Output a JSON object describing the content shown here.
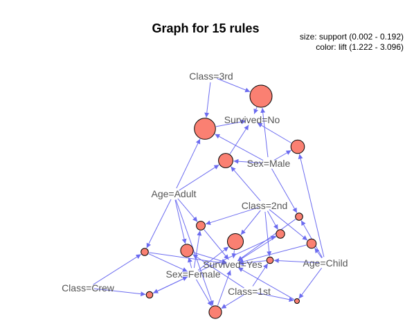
{
  "title": "Graph for 15 rules",
  "legend": {
    "size_line": "size: support (0.002 - 0.192)",
    "color_line": "color: lift (1.222 - 3.096)"
  },
  "colors": {
    "node_fill": "#fa8072",
    "edge": "#6b6bf0",
    "label": "#555555"
  },
  "items": [
    {
      "id": "class3",
      "label": "Class=3rd"
    },
    {
      "id": "survno",
      "label": "Survived=No"
    },
    {
      "id": "male",
      "label": "Sex=Male"
    },
    {
      "id": "adult",
      "label": "Age=Adult"
    },
    {
      "id": "class2",
      "label": "Class=2nd"
    },
    {
      "id": "survyes",
      "label": "Survived=Yes"
    },
    {
      "id": "child",
      "label": "Age=Child"
    },
    {
      "id": "female",
      "label": "Sex=Female"
    },
    {
      "id": "crew",
      "label": "Class=Crew"
    },
    {
      "id": "class1",
      "label": "Class=1st"
    }
  ],
  "rules": [
    {
      "id": "r1",
      "support": 0.192
    },
    {
      "id": "r2",
      "support": 0.17
    },
    {
      "id": "r3",
      "support": 0.06
    },
    {
      "id": "r4",
      "support": 0.05
    },
    {
      "id": "r5",
      "support": 0.04
    },
    {
      "id": "r6",
      "support": 0.04
    },
    {
      "id": "r7",
      "support": 0.08
    },
    {
      "id": "r8",
      "support": 0.012
    },
    {
      "id": "r9",
      "support": 0.011
    },
    {
      "id": "r10",
      "support": 0.015
    },
    {
      "id": "r11",
      "support": 0.006
    },
    {
      "id": "r12",
      "support": 0.006
    },
    {
      "id": "r13",
      "support": 0.004
    },
    {
      "id": "r14",
      "support": 0.004
    },
    {
      "id": "r15",
      "support": 0.002
    }
  ]
}
